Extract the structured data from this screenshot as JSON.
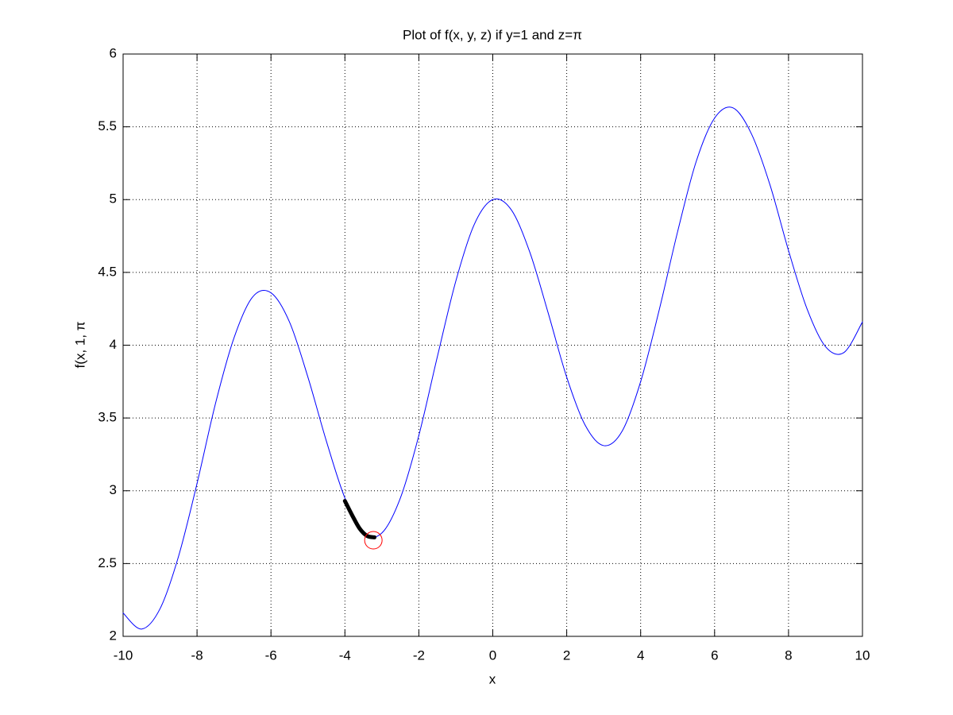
{
  "chart_data": {
    "type": "line",
    "title": "Plot of f(x, y, z) if y=1 and z=π",
    "xlabel": "x",
    "ylabel": "f(x, 1, π",
    "xlim": [
      -10,
      10
    ],
    "ylim": [
      2,
      6
    ],
    "xticks": [
      -10,
      -8,
      -6,
      -4,
      -2,
      0,
      2,
      4,
      6,
      8,
      10
    ],
    "yticks": [
      2,
      2.5,
      3,
      3.5,
      4,
      4.5,
      5,
      5.5,
      6
    ],
    "grid": true,
    "series": [
      {
        "color": "#0000ff",
        "width": 1,
        "style": "line",
        "x": [
          -10,
          -9.5,
          -9,
          -8.5,
          -8,
          -7.5,
          -7,
          -6.5,
          -6,
          -5.5,
          -5,
          -4.5,
          -4,
          -3.5,
          -3,
          -2.5,
          -2,
          -1.5,
          -1,
          -0.5,
          0,
          0.5,
          1,
          1.5,
          2,
          2.5,
          3,
          3.5,
          4,
          4.5,
          5,
          5.5,
          6,
          6.5,
          7,
          7.5,
          8,
          8.5,
          9,
          9.5,
          10
        ],
        "values": [
          2.16,
          2.05,
          2.19,
          2.55,
          3.05,
          3.6,
          4.05,
          4.33,
          4.36,
          4.16,
          3.78,
          3.34,
          2.95,
          2.71,
          2.71,
          2.95,
          3.38,
          3.92,
          4.44,
          4.83,
          5.0,
          4.93,
          4.64,
          4.22,
          3.78,
          3.45,
          3.31,
          3.41,
          3.75,
          4.24,
          4.78,
          5.26,
          5.56,
          5.63,
          5.45,
          5.1,
          4.65,
          4.25,
          3.99,
          3.95,
          4.16
        ]
      },
      {
        "color": "#000000",
        "width": 5,
        "style": "line",
        "x": [
          -4,
          -3.8,
          -3.6,
          -3.4,
          -3.2
        ],
        "values": [
          2.93,
          2.83,
          2.74,
          2.69,
          2.68
        ]
      },
      {
        "color": "#ff0000",
        "width": 1,
        "style": "circle",
        "x": [
          -3.23
        ],
        "values": [
          2.66
        ]
      }
    ]
  }
}
